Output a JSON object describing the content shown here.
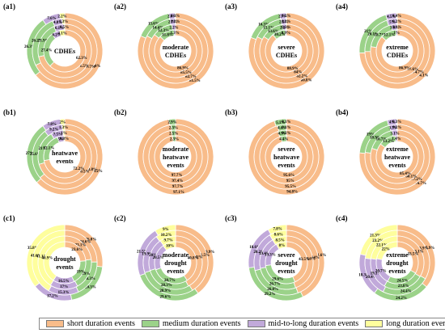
{
  "colors": {
    "short": "#F8BC8A",
    "medium": "#9BD289",
    "mid_to_long": "#C1A9DA",
    "long": "#FEFE9D"
  },
  "legend": [
    {
      "key": "short",
      "label": "short duration events"
    },
    {
      "key": "medium",
      "label": "medium duration events"
    },
    {
      "key": "mid_to_long",
      "label": "mid-to-long duration events"
    },
    {
      "key": "long",
      "label": "long duration events"
    }
  ],
  "chart_data": [
    {
      "type": "pie",
      "panel": "(a1)",
      "center": [
        "CDHEs"
      ],
      "rings": [
        {
          "short": 64.0,
          "medium": 26.3,
          "mid_to_long": 7.6,
          "long": 2.2
        },
        {
          "short": 67.7,
          "medium": 26.2,
          "mid_to_long": 4.8,
          "long": 1.3
        },
        {
          "short": 71.5,
          "medium": 21.9,
          "mid_to_long": 6.1,
          "long": 0.5
        },
        {
          "short": 62.3,
          "medium": 27.4,
          "mid_to_long": 6.2,
          "long": 4.1
        }
      ]
    },
    {
      "type": "pie",
      "panel": "(a2)",
      "center": [
        "moderate",
        "CDHEs"
      ],
      "rings": [
        {
          "short": 81.5,
          "medium": 15.6,
          "mid_to_long": 2.6,
          "long": 0.3
        },
        {
          "short": 82.7,
          "medium": 14.4,
          "mid_to_long": 2.7,
          "long": 0.2
        },
        {
          "short": 85.5,
          "medium": 12.3,
          "mid_to_long": 2.2,
          "long": 0.0
        },
        {
          "short": 86.9,
          "medium": 11.8,
          "mid_to_long": 1.3,
          "long": 0.0
        }
      ]
    },
    {
      "type": "pie",
      "panel": "(a3)",
      "center": [
        "severe",
        "CDHEs"
      ],
      "rings": [
        {
          "short": 80.8,
          "medium": 16.3,
          "mid_to_long": 2.7,
          "long": 0.2
        },
        {
          "short": 82.2,
          "medium": 15.1,
          "mid_to_long": 2.5,
          "long": 0.2
        },
        {
          "short": 84.0,
          "medium": 13.6,
          "mid_to_long": 2.2,
          "long": 0.2
        },
        {
          "short": 88.9,
          "medium": 10.2,
          "mid_to_long": 0.9,
          "long": 0.0
        }
      ]
    },
    {
      "type": "pie",
      "panel": "(a4)",
      "center": [
        "extreme",
        "CDHEs"
      ],
      "rings": [
        {
          "short": 74.1,
          "medium": 21.0,
          "mid_to_long": 4.5,
          "long": 0.4
        },
        {
          "short": 74.7,
          "medium": 20.1,
          "mid_to_long": 5.0,
          "long": 0.2
        },
        {
          "short": 77.6,
          "medium": 18.7,
          "mid_to_long": 3.6,
          "long": 0.1
        },
        {
          "short": 86.9,
          "medium": 12.1,
          "mid_to_long": 1.0,
          "long": 0.0
        }
      ]
    },
    {
      "type": "pie",
      "panel": "(b1)",
      "center": [
        "heatwave",
        "events"
      ],
      "rings": [
        {
          "short": 63.2,
          "medium": 27.0,
          "mid_to_long": 7.8,
          "long": 2.0
        },
        {
          "short": 63.8,
          "medium": 25.6,
          "mid_to_long": 9.2,
          "long": 1.3
        },
        {
          "short": 70.5,
          "medium": 21.0,
          "mid_to_long": 7.5,
          "long": 1.0
        },
        {
          "short": 72.2,
          "medium": 22.1,
          "mid_to_long": 5.0,
          "long": 0.8
        }
      ]
    },
    {
      "type": "pie",
      "panel": "(b2)",
      "center": [
        "moderate",
        "heatwave",
        "events"
      ],
      "rings": [
        {
          "short": 97.1,
          "medium": 2.9,
          "mid_to_long": 0.0,
          "long": 0.0
        },
        {
          "short": 97.7,
          "medium": 2.3,
          "mid_to_long": 0.0,
          "long": 0.0
        },
        {
          "short": 97.4,
          "medium": 2.5,
          "mid_to_long": 0.0,
          "long": 0.0
        },
        {
          "short": 97.7,
          "medium": 2.3,
          "mid_to_long": 0.0,
          "long": 0.0
        }
      ]
    },
    {
      "type": "pie",
      "panel": "(b3)",
      "center": [
        "severe",
        "heatwave",
        "events"
      ],
      "rings": [
        {
          "short": 94.8,
          "medium": 5.1,
          "mid_to_long": 0.1,
          "long": 0.0
        },
        {
          "short": 95.5,
          "medium": 4.4,
          "mid_to_long": 0.1,
          "long": 0.0
        },
        {
          "short": 95.0,
          "medium": 4.9,
          "mid_to_long": 0.2,
          "long": 0.0
        },
        {
          "short": 95.6,
          "medium": 4.4,
          "mid_to_long": 0.0,
          "long": 0.0
        }
      ]
    },
    {
      "type": "pie",
      "panel": "(b4)",
      "center": [
        "extreme",
        "heatwave",
        "events"
      ],
      "rings": [
        {
          "short": 76.7,
          "medium": 19.0,
          "mid_to_long": 4.0,
          "long": 0.3
        },
        {
          "short": 77.2,
          "medium": 18.9,
          "mid_to_long": 3.7,
          "long": 0.2
        },
        {
          "short": 80.1,
          "medium": 16.7,
          "mid_to_long": 3.1,
          "long": 0.0
        },
        {
          "short": 85.4,
          "medium": 13.2,
          "mid_to_long": 1.4,
          "long": 0.0
        }
      ]
    },
    {
      "type": "pie",
      "panel": "(c1)",
      "center": [
        "drought",
        "events"
      ],
      "rings": [
        {
          "short": 26.8,
          "medium": 20.3,
          "mid_to_long": 17.2,
          "long": 35.8
        },
        {
          "short": 24.6,
          "medium": 18.3,
          "mid_to_long": 15.3,
          "long": 41.6
        },
        {
          "short": 23.1,
          "medium": 19.0,
          "mid_to_long": 17.0,
          "long": 41.1
        },
        {
          "short": 23.6,
          "medium": 19.0,
          "mid_to_long": 16.5,
          "long": 40.9
        }
      ]
    },
    {
      "type": "pie",
      "panel": "(c2)",
      "center": [
        "moderate",
        "drought",
        "events"
      ],
      "rings": [
        {
          "short": 39.9,
          "medium": 29.6,
          "mid_to_long": 21.5,
          "long": 9.0
        },
        {
          "short": 41.5,
          "medium": 28.9,
          "mid_to_long": 19.9,
          "long": 10.2
        },
        {
          "short": 42.0,
          "medium": 28.3,
          "mid_to_long": 20.0,
          "long": 9.7
        },
        {
          "short": 40.8,
          "medium": 28.7,
          "mid_to_long": 20.5,
          "long": 10.0
        }
      ]
    },
    {
      "type": "pie",
      "panel": "(c3)",
      "center": [
        "severe",
        "drought",
        "events"
      ],
      "rings": [
        {
          "short": 41.6,
          "medium": 29.2,
          "mid_to_long": 18.6,
          "long": 7.8
        },
        {
          "short": 44.0,
          "medium": 26.8,
          "mid_to_long": 20.2,
          "long": 8.6
        },
        {
          "short": 43.6,
          "medium": 26.7,
          "mid_to_long": 19.4,
          "long": 8.5
        },
        {
          "short": 43.5,
          "medium": 29.6,
          "mid_to_long": 19.3,
          "long": 8.0
        }
      ]
    },
    {
      "type": "pie",
      "panel": "(c4)",
      "center": [
        "extreme",
        "drought",
        "events"
      ],
      "rings": [
        {
          "short": 35.9,
          "medium": 24.2,
          "mid_to_long": 18.3,
          "long": 21.3
        },
        {
          "short": 33.9,
          "medium": 24.4,
          "mid_to_long": 20.4,
          "long": 23.2
        },
        {
          "short": 33.1,
          "medium": 23.8,
          "mid_to_long": 19.1,
          "long": 22.1
        },
        {
          "short": 33.5,
          "medium": 24.5,
          "mid_to_long": 20.7,
          "long": 22.0
        }
      ]
    }
  ]
}
